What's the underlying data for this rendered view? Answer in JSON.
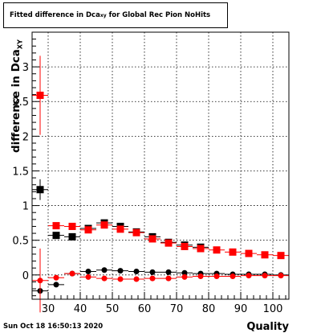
{
  "title": {
    "main": "Fitted difference in Dca",
    "sub": "xy",
    "rest": " for Global Rec Pion NoHits"
  },
  "ylabel": {
    "main": "difference in Dca",
    "sub": "XY"
  },
  "xlabel": "Quality",
  "timestamp": "Sun Oct 18 16:50:13 2020",
  "colors": {
    "black": "#000000",
    "red": "#ff0000",
    "grid": "#000000"
  },
  "chart_data": {
    "type": "scatter",
    "title": "Fitted difference in Dca_xy for Global Rec Pion NoHits",
    "xlabel": "Quality",
    "ylabel": "difference in Dca_XY",
    "xlim": [
      25,
      105
    ],
    "ylim": [
      -0.35,
      3.5
    ],
    "grid": true,
    "xticks": [
      30,
      40,
      50,
      60,
      70,
      80,
      90,
      100
    ],
    "xtick_labels": [
      "30",
      "40",
      "50",
      "60",
      "70",
      "80",
      "90",
      "100"
    ],
    "yticks": [
      0,
      0.5,
      1,
      1.5,
      2,
      2.5,
      3
    ],
    "ytick_labels": [
      "0",
      "0.5",
      "1",
      "1.5",
      "2",
      "2.5",
      "3"
    ],
    "x": [
      27.5,
      32.5,
      37.5,
      42.5,
      47.5,
      52.5,
      57.5,
      62.5,
      67.5,
      72.5,
      77.5,
      82.5,
      87.5,
      92.5,
      97.5,
      102.5
    ],
    "x_halfwidth": 2.5,
    "series": [
      {
        "marker": "square",
        "color": "#000000",
        "values": [
          1.23,
          0.57,
          0.55,
          0.67,
          0.75,
          0.7,
          0.62,
          0.55,
          0.47,
          0.43,
          0.4,
          null,
          null,
          null,
          null,
          null
        ],
        "errors": [
          0.15,
          0.04,
          0.04,
          0.04,
          0.03,
          0.03,
          0.03,
          0.03,
          0.02,
          0.02,
          0.02,
          null,
          null,
          null,
          null,
          null
        ]
      },
      {
        "marker": "square",
        "color": "#ff0000",
        "values": [
          2.59,
          0.71,
          0.7,
          0.65,
          0.72,
          0.66,
          0.61,
          0.52,
          0.46,
          0.41,
          0.38,
          0.36,
          0.33,
          0.31,
          0.29,
          0.28
        ],
        "errors": [
          0.57,
          0.03,
          0.03,
          0.03,
          0.03,
          0.03,
          0.02,
          0.02,
          0.02,
          0.02,
          0.02,
          0.01,
          0.01,
          0.01,
          0.01,
          0.01
        ]
      },
      {
        "marker": "circle",
        "color": "#000000",
        "values": [
          -0.23,
          -0.14,
          0.02,
          0.05,
          0.07,
          0.06,
          0.05,
          0.04,
          0.04,
          0.03,
          0.02,
          0.02,
          0.01,
          0.01,
          0.01,
          0.0
        ],
        "errors": [
          0.05,
          0.03,
          0.02,
          0.02,
          0.02,
          0.02,
          0.02,
          0.02,
          0.01,
          0.01,
          0.01,
          0.01,
          0.01,
          0.01,
          0.01,
          0.01
        ]
      },
      {
        "marker": "circle",
        "color": "#ff0000",
        "values": [
          -0.08,
          -0.04,
          0.02,
          -0.03,
          -0.05,
          -0.06,
          -0.06,
          -0.05,
          -0.05,
          -0.03,
          -0.02,
          -0.02,
          -0.02,
          -0.01,
          -0.01,
          -0.01
        ],
        "errors": [
          0.46,
          0.03,
          0.02,
          0.02,
          0.02,
          0.02,
          0.02,
          0.02,
          0.01,
          0.01,
          0.01,
          0.01,
          0.01,
          0.01,
          0.01,
          0.01
        ]
      }
    ]
  }
}
